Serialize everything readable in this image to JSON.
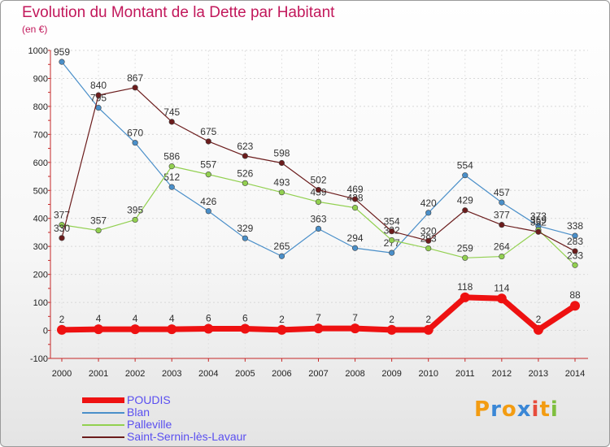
{
  "header": {
    "title": "Evolution du Montant de la Dette par Habitant",
    "unit": "(en €)"
  },
  "chart_data": {
    "type": "line",
    "title": "Evolution du Montant de la Dette par Habitant",
    "ylabel": "(en €)",
    "ylim": [
      -100,
      1000
    ],
    "yticks": [
      "1000",
      "900",
      "800",
      "700",
      "600",
      "500",
      "400",
      "300",
      "200",
      "100",
      "0",
      "-100"
    ],
    "x": [
      "2000",
      "2001",
      "2002",
      "2003",
      "2004",
      "2005",
      "2006",
      "2007",
      "2008",
      "2009",
      "2010",
      "2011",
      "2012",
      "2013",
      "2014"
    ],
    "grid": true,
    "legend_position": "bottom-left",
    "series": [
      {
        "name": "Blan",
        "color": "#4a8fc9",
        "values": [
          959,
          795,
          670,
          512,
          426,
          329,
          265,
          363,
          294,
          277,
          420,
          554,
          457,
          373,
          338
        ],
        "labels": [
          "959",
          "795",
          "670",
          "512",
          "426",
          "329",
          "265",
          "363",
          "294",
          "277",
          "420",
          "554",
          "457",
          "373",
          "338"
        ]
      },
      {
        "name": "Palleville",
        "color": "#92d050",
        "values": [
          377,
          357,
          395,
          586,
          557,
          526,
          493,
          459,
          438,
          322,
          293,
          259,
          264,
          359,
          233
        ],
        "labels": [
          "377",
          "357",
          "395",
          "586",
          "557",
          "526",
          "493",
          "459",
          "438",
          "322",
          "293",
          "259",
          "264",
          "359",
          "233"
        ]
      },
      {
        "name": "Saint-Sernin-lès-Lavaur",
        "color": "#6b1c1c",
        "values": [
          330,
          840,
          867,
          745,
          675,
          623,
          598,
          502,
          469,
          354,
          320,
          429,
          377,
          352,
          283
        ],
        "labels": [
          "330",
          "840",
          "867",
          "745",
          "675",
          "623",
          "598",
          "502",
          "469",
          "354",
          "320",
          "429",
          "377",
          "352",
          "283"
        ]
      },
      {
        "name": "POUDIS",
        "color": "#ee1111",
        "values": [
          2,
          4,
          4,
          4,
          6,
          6,
          2,
          7,
          7,
          2,
          2,
          118,
          114,
          2,
          88
        ],
        "labels": [
          "2",
          "4",
          "4",
          "4",
          "6",
          "6",
          "2",
          "7",
          "7",
          "2",
          "2",
          "118",
          "114",
          "2",
          "88"
        ]
      }
    ]
  },
  "legend": [
    {
      "label": "POUDIS",
      "color": "#ee1111",
      "thick": true
    },
    {
      "label": "Blan",
      "color": "#4a8fc9",
      "thick": false
    },
    {
      "label": "Palleville",
      "color": "#92d050",
      "thick": false
    },
    {
      "label": "Saint-Sernin-lès-Lavaur",
      "color": "#6b1c1c",
      "thick": false
    }
  ],
  "logo": {
    "letters": [
      "P",
      "r",
      "o",
      "x",
      "i",
      "t",
      "i"
    ],
    "colors": [
      "#f39c12",
      "#3a87d6",
      "#f39c12",
      "#3a87d6",
      "#e74c3c",
      "#f39c12",
      "#7fbf3f"
    ]
  }
}
